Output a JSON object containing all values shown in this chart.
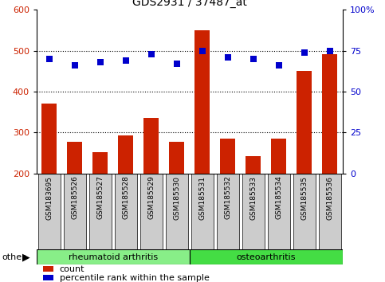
{
  "title": "GDS2931 / 37487_at",
  "samples": [
    "GSM183695",
    "GSM185526",
    "GSM185527",
    "GSM185528",
    "GSM185529",
    "GSM185530",
    "GSM185531",
    "GSM185532",
    "GSM185533",
    "GSM185534",
    "GSM185535",
    "GSM185536"
  ],
  "counts": [
    370,
    278,
    252,
    292,
    335,
    278,
    550,
    285,
    242,
    285,
    450,
    492
  ],
  "percentiles": [
    70,
    66,
    68,
    69,
    73,
    67,
    75,
    71,
    70,
    66,
    74,
    75
  ],
  "bar_color": "#cc2200",
  "dot_color": "#0000cc",
  "ylim_left": [
    200,
    600
  ],
  "ylim_right": [
    0,
    100
  ],
  "yticks_left": [
    200,
    300,
    400,
    500,
    600
  ],
  "yticks_right": [
    0,
    25,
    50,
    75,
    100
  ],
  "ytick_labels_right": [
    "0",
    "25",
    "50",
    "75",
    "100%"
  ],
  "grid_values": [
    300,
    400,
    500
  ],
  "groups": [
    {
      "label": "rheumatoid arthritis",
      "start": 0,
      "end": 6,
      "color": "#88ee88"
    },
    {
      "label": "osteoarthritis",
      "start": 6,
      "end": 12,
      "color": "#44dd44"
    }
  ],
  "other_label": "other",
  "legend_count_label": "count",
  "legend_pct_label": "percentile rank within the sample",
  "title_fontsize": 10,
  "tick_fontsize": 8,
  "bar_width": 0.6,
  "dot_size": 35,
  "label_bg_color": "#cccccc",
  "label_fontsize": 6.5
}
